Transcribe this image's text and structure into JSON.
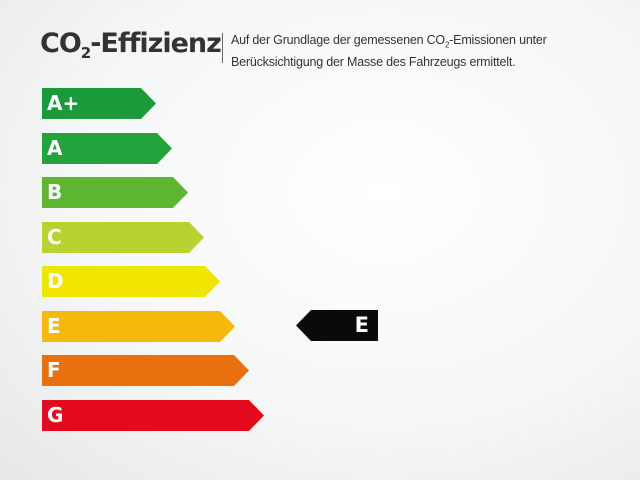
{
  "header": {
    "title_prefix": "CO",
    "title_sub": "2",
    "title_suffix": "-Effizienz",
    "description_line1_pre": "Auf der Grundlage der gemessenen CO",
    "description_line1_sub": "2",
    "description_line1_post": "-Emissionen unter",
    "description_line2": "Berücksichtigung der Masse des Fahrzeugs ermittelt."
  },
  "classes": [
    {
      "label": "A+",
      "color": "#1a9a3a"
    },
    {
      "label": "A",
      "color": "#22a33b"
    },
    {
      "label": "B",
      "color": "#5db531"
    },
    {
      "label": "C",
      "color": "#b8d230"
    },
    {
      "label": "D",
      "color": "#f1e500"
    },
    {
      "label": "E",
      "color": "#f6b80a"
    },
    {
      "label": "F",
      "color": "#e9700f"
    },
    {
      "label": "G",
      "color": "#e30a1e"
    }
  ],
  "rating": {
    "label": "E",
    "color": "#0a0a0a"
  }
}
